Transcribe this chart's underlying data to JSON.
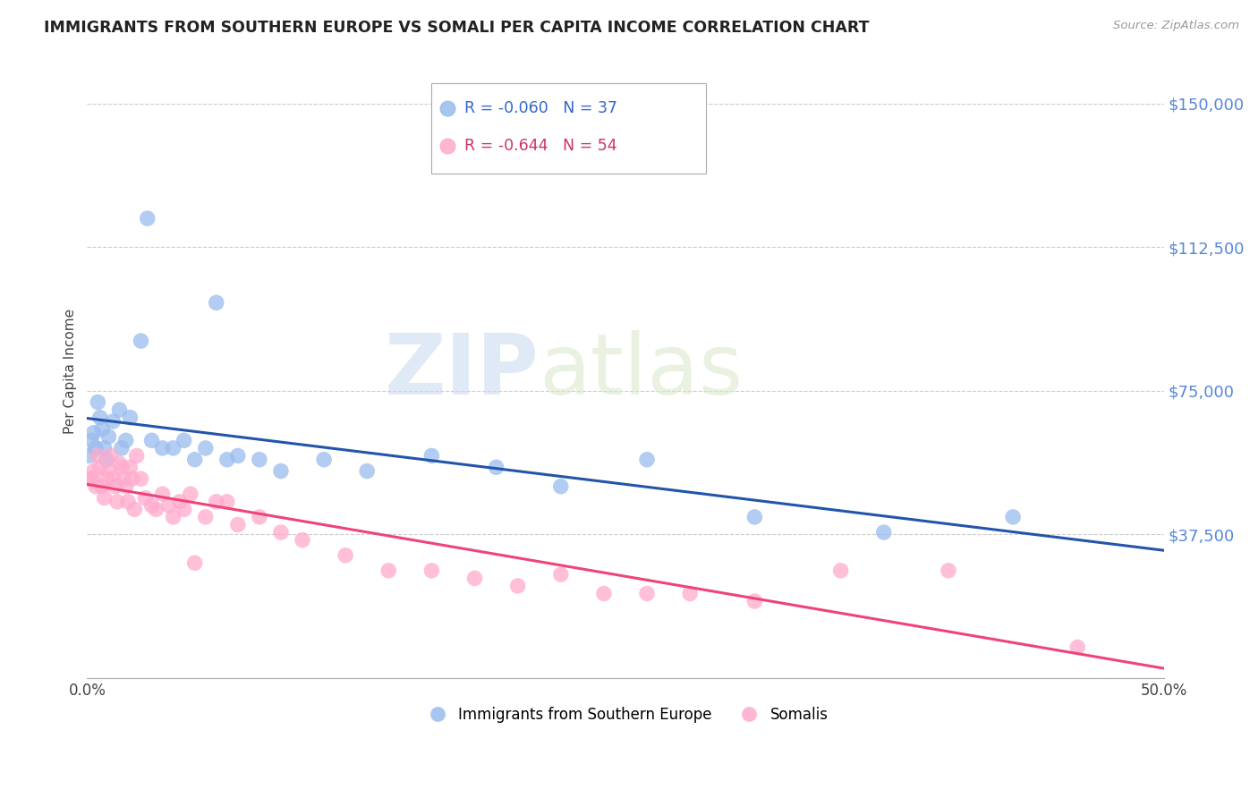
{
  "title": "IMMIGRANTS FROM SOUTHERN EUROPE VS SOMALI PER CAPITA INCOME CORRELATION CHART",
  "source": "Source: ZipAtlas.com",
  "ylabel": "Per Capita Income",
  "yticks": [
    0,
    37500,
    75000,
    112500,
    150000
  ],
  "xlim": [
    0.0,
    0.5
  ],
  "ylim": [
    0,
    160000
  ],
  "background_color": "#ffffff",
  "grid_color": "#cccccc",
  "watermark_zip": "ZIP",
  "watermark_atlas": "atlas",
  "blue_color": "#99bbee",
  "pink_color": "#ffaacc",
  "blue_line_color": "#2255aa",
  "pink_line_color": "#ee4477",
  "R_blue": "-0.060",
  "N_blue": "37",
  "R_pink": "-0.644",
  "N_pink": "54",
  "legend_label_blue": "Immigrants from Southern Europe",
  "legend_label_pink": "Somalis",
  "blue_scatter_x": [
    0.001,
    0.002,
    0.003,
    0.004,
    0.005,
    0.006,
    0.007,
    0.008,
    0.009,
    0.01,
    0.012,
    0.015,
    0.016,
    0.018,
    0.02,
    0.025,
    0.028,
    0.03,
    0.035,
    0.04,
    0.045,
    0.05,
    0.055,
    0.06,
    0.065,
    0.07,
    0.08,
    0.09,
    0.11,
    0.13,
    0.16,
    0.19,
    0.22,
    0.26,
    0.31,
    0.37,
    0.43
  ],
  "blue_scatter_y": [
    58000,
    62000,
    64000,
    60000,
    72000,
    68000,
    65000,
    60000,
    57000,
    63000,
    67000,
    70000,
    60000,
    62000,
    68000,
    88000,
    120000,
    62000,
    60000,
    60000,
    62000,
    57000,
    60000,
    98000,
    57000,
    58000,
    57000,
    54000,
    57000,
    54000,
    58000,
    55000,
    50000,
    57000,
    42000,
    38000,
    42000
  ],
  "pink_scatter_x": [
    0.001,
    0.002,
    0.003,
    0.004,
    0.005,
    0.006,
    0.007,
    0.008,
    0.009,
    0.01,
    0.011,
    0.012,
    0.013,
    0.014,
    0.015,
    0.016,
    0.017,
    0.018,
    0.019,
    0.02,
    0.021,
    0.022,
    0.023,
    0.025,
    0.027,
    0.03,
    0.032,
    0.035,
    0.038,
    0.04,
    0.043,
    0.045,
    0.048,
    0.05,
    0.055,
    0.06,
    0.065,
    0.07,
    0.08,
    0.09,
    0.1,
    0.12,
    0.14,
    0.16,
    0.18,
    0.2,
    0.22,
    0.24,
    0.26,
    0.28,
    0.31,
    0.35,
    0.4,
    0.46
  ],
  "pink_scatter_y": [
    52000,
    52000,
    54000,
    50000,
    58000,
    55000,
    50000,
    47000,
    52000,
    54000,
    58000,
    52000,
    50000,
    46000,
    56000,
    55000,
    52000,
    50000,
    46000,
    55000,
    52000,
    44000,
    58000,
    52000,
    47000,
    45000,
    44000,
    48000,
    45000,
    42000,
    46000,
    44000,
    48000,
    30000,
    42000,
    46000,
    46000,
    40000,
    42000,
    38000,
    36000,
    32000,
    28000,
    28000,
    26000,
    24000,
    27000,
    22000,
    22000,
    22000,
    20000,
    28000,
    28000,
    8000
  ]
}
